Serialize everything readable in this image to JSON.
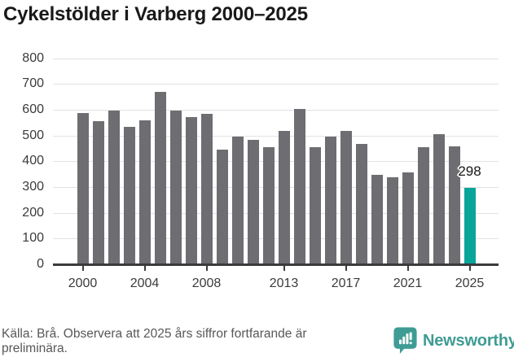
{
  "title": "Cykelstölder i Varberg 2000–2025",
  "chart_data": {
    "type": "bar",
    "title": "Cykelstölder i Varberg 2000–2025",
    "x": [
      2000,
      2001,
      2002,
      2003,
      2004,
      2005,
      2006,
      2007,
      2008,
      2009,
      2010,
      2011,
      2012,
      2013,
      2014,
      2015,
      2016,
      2017,
      2018,
      2019,
      2020,
      2021,
      2022,
      2023,
      2024,
      2025
    ],
    "values": [
      588,
      554,
      595,
      532,
      559,
      668,
      595,
      570,
      585,
      446,
      494,
      484,
      453,
      516,
      604,
      456,
      496,
      519,
      468,
      347,
      338,
      358,
      456,
      504,
      457,
      298
    ],
    "highlight": {
      "year": 2025,
      "value": 298,
      "label": "298"
    },
    "colors": {
      "bar": "#6d6d72",
      "highlight": "#09a49a"
    },
    "xlabel": "",
    "ylabel": "",
    "ylim": [
      0,
      800
    ],
    "yticks": [
      0,
      100,
      200,
      300,
      400,
      500,
      600,
      700,
      800
    ],
    "xticks": [
      2000,
      2004,
      2008,
      2013,
      2017,
      2021,
      2025
    ],
    "grid": "horizontal-only",
    "legend": "none"
  },
  "footer": {
    "source_lines": [
      "Källa: Brå. Observera att 2025 års siffror fortfarande är",
      "preliminära."
    ],
    "brand": "Newsworthy",
    "brand_color": "#3f9c94"
  }
}
